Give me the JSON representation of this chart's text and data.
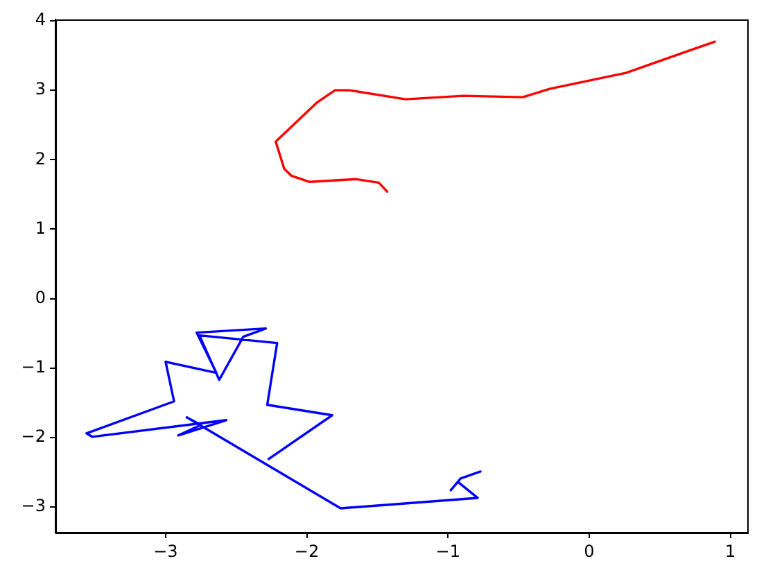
{
  "chart_data": {
    "type": "line",
    "series": [
      {
        "color": "#ff0000",
        "x": [
          -1.43,
          -1.49,
          -1.65,
          -1.98,
          -2.11,
          -2.16,
          -2.22,
          -1.93,
          -1.8,
          -1.7,
          -1.3,
          -0.89,
          -0.47,
          -0.28,
          0.26,
          0.89
        ],
        "values": [
          1.54,
          1.67,
          1.72,
          1.68,
          1.77,
          1.87,
          2.26,
          2.82,
          3.0,
          3.0,
          2.87,
          2.92,
          2.9,
          3.02,
          3.25,
          3.7
        ]
      },
      {
        "color": "#0000ff",
        "x": [
          -2.27,
          -1.82,
          -2.28,
          -2.21,
          -2.76,
          -2.62,
          -2.45,
          -2.29,
          -2.78,
          -2.64,
          -3.0,
          -2.94,
          -3.56,
          -3.52,
          -2.57,
          -2.91,
          -2.75,
          -2.85,
          -1.76,
          -0.79,
          -0.93,
          -0.98,
          -0.91,
          -0.77
        ],
        "values": [
          -2.31,
          -1.68,
          -1.53,
          -0.64,
          -0.53,
          -1.17,
          -0.55,
          -0.43,
          -0.49,
          -1.07,
          -0.91,
          -1.48,
          -1.94,
          -1.99,
          -1.75,
          -1.97,
          -1.82,
          -1.71,
          -3.02,
          -2.87,
          -2.64,
          -2.76,
          -2.59,
          -2.49
        ]
      }
    ],
    "xlim": [
      -3.78,
      1.12
    ],
    "ylim": [
      -3.37,
      4.02
    ],
    "xticks": [
      {
        "value": -3,
        "label": "−3"
      },
      {
        "value": -2,
        "label": "−2"
      },
      {
        "value": -1,
        "label": "−1"
      },
      0,
      1
    ],
    "yticks": [
      {
        "value": -3,
        "label": "−3"
      },
      {
        "value": -2,
        "label": "−2"
      },
      {
        "value": -1,
        "label": "−1"
      },
      0,
      1,
      2,
      3,
      4
    ]
  }
}
